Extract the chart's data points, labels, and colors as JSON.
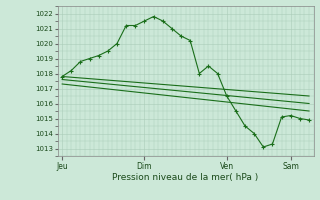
{
  "bg_color": "#cce8d8",
  "grid_color": "#aaccb8",
  "line_color": "#1a6e1a",
  "ylim": [
    1012.5,
    1022.5
  ],
  "yticks": [
    1013,
    1014,
    1015,
    1016,
    1017,
    1018,
    1019,
    1020,
    1021,
    1022
  ],
  "xlabel": "Pression niveau de la mer( hPa )",
  "day_labels": [
    "Jeu",
    "Dim",
    "Ven",
    "Sam"
  ],
  "day_positions": [
    0,
    9,
    18,
    25
  ],
  "xlim": [
    -0.5,
    27.5
  ],
  "main_x": [
    0,
    1,
    2,
    3,
    4,
    5,
    6,
    7,
    8,
    9,
    10,
    11,
    12,
    13,
    14,
    15,
    16,
    17,
    18,
    19,
    20,
    21,
    22,
    23,
    24,
    25,
    26,
    27
  ],
  "main_y": [
    1017.8,
    1018.2,
    1018.8,
    1019.0,
    1019.2,
    1019.5,
    1020.0,
    1021.2,
    1021.2,
    1021.5,
    1021.8,
    1021.5,
    1021.0,
    1020.5,
    1020.2,
    1018.0,
    1018.5,
    1018.0,
    1016.5,
    1015.5,
    1014.5,
    1014.0,
    1013.1,
    1013.3,
    1015.1,
    1015.2,
    1015.0,
    1014.9
  ],
  "trend1_x": [
    0,
    27
  ],
  "trend1_y": [
    1017.8,
    1016.5
  ],
  "trend2_x": [
    0,
    27
  ],
  "trend2_y": [
    1017.6,
    1016.0
  ],
  "trend3_x": [
    0,
    27
  ],
  "trend3_y": [
    1017.3,
    1015.5
  ]
}
